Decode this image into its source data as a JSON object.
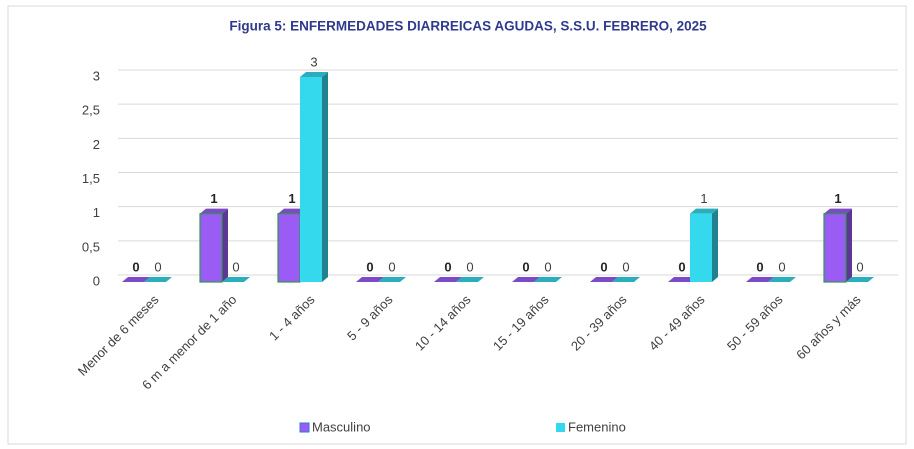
{
  "chart_data": {
    "type": "bar",
    "title": "Figura 5: ENFERMEDADES DIARREICAS AGUDAS, S.S.U. FEBRERO, 2025",
    "categories": [
      "Menor de 6 meses",
      "6 m a menor de 1 año",
      "1 - 4 años",
      "5 - 9 años",
      "10 - 14 años",
      "15 - 19 años",
      "20 - 39 años",
      "40 - 49 años",
      "50 - 59 años",
      "60 años y más"
    ],
    "series": [
      {
        "name": "Masculino",
        "color": "#9a5cf5",
        "values": [
          0,
          1,
          1,
          0,
          0,
          0,
          0,
          0,
          0,
          1
        ]
      },
      {
        "name": "Femenino",
        "color": "#35d9ee",
        "values": [
          0,
          0,
          3,
          0,
          0,
          0,
          0,
          1,
          0,
          0
        ]
      }
    ],
    "ylim": [
      0,
      3
    ],
    "yticks": [
      0,
      {
        "value": 0.5,
        "label": "0,5"
      },
      1,
      {
        "value": 1.5,
        "label": "1,5"
      },
      2,
      {
        "value": 2.5,
        "label": "2,5"
      },
      3
    ],
    "grid": true,
    "legend": "bottom"
  }
}
